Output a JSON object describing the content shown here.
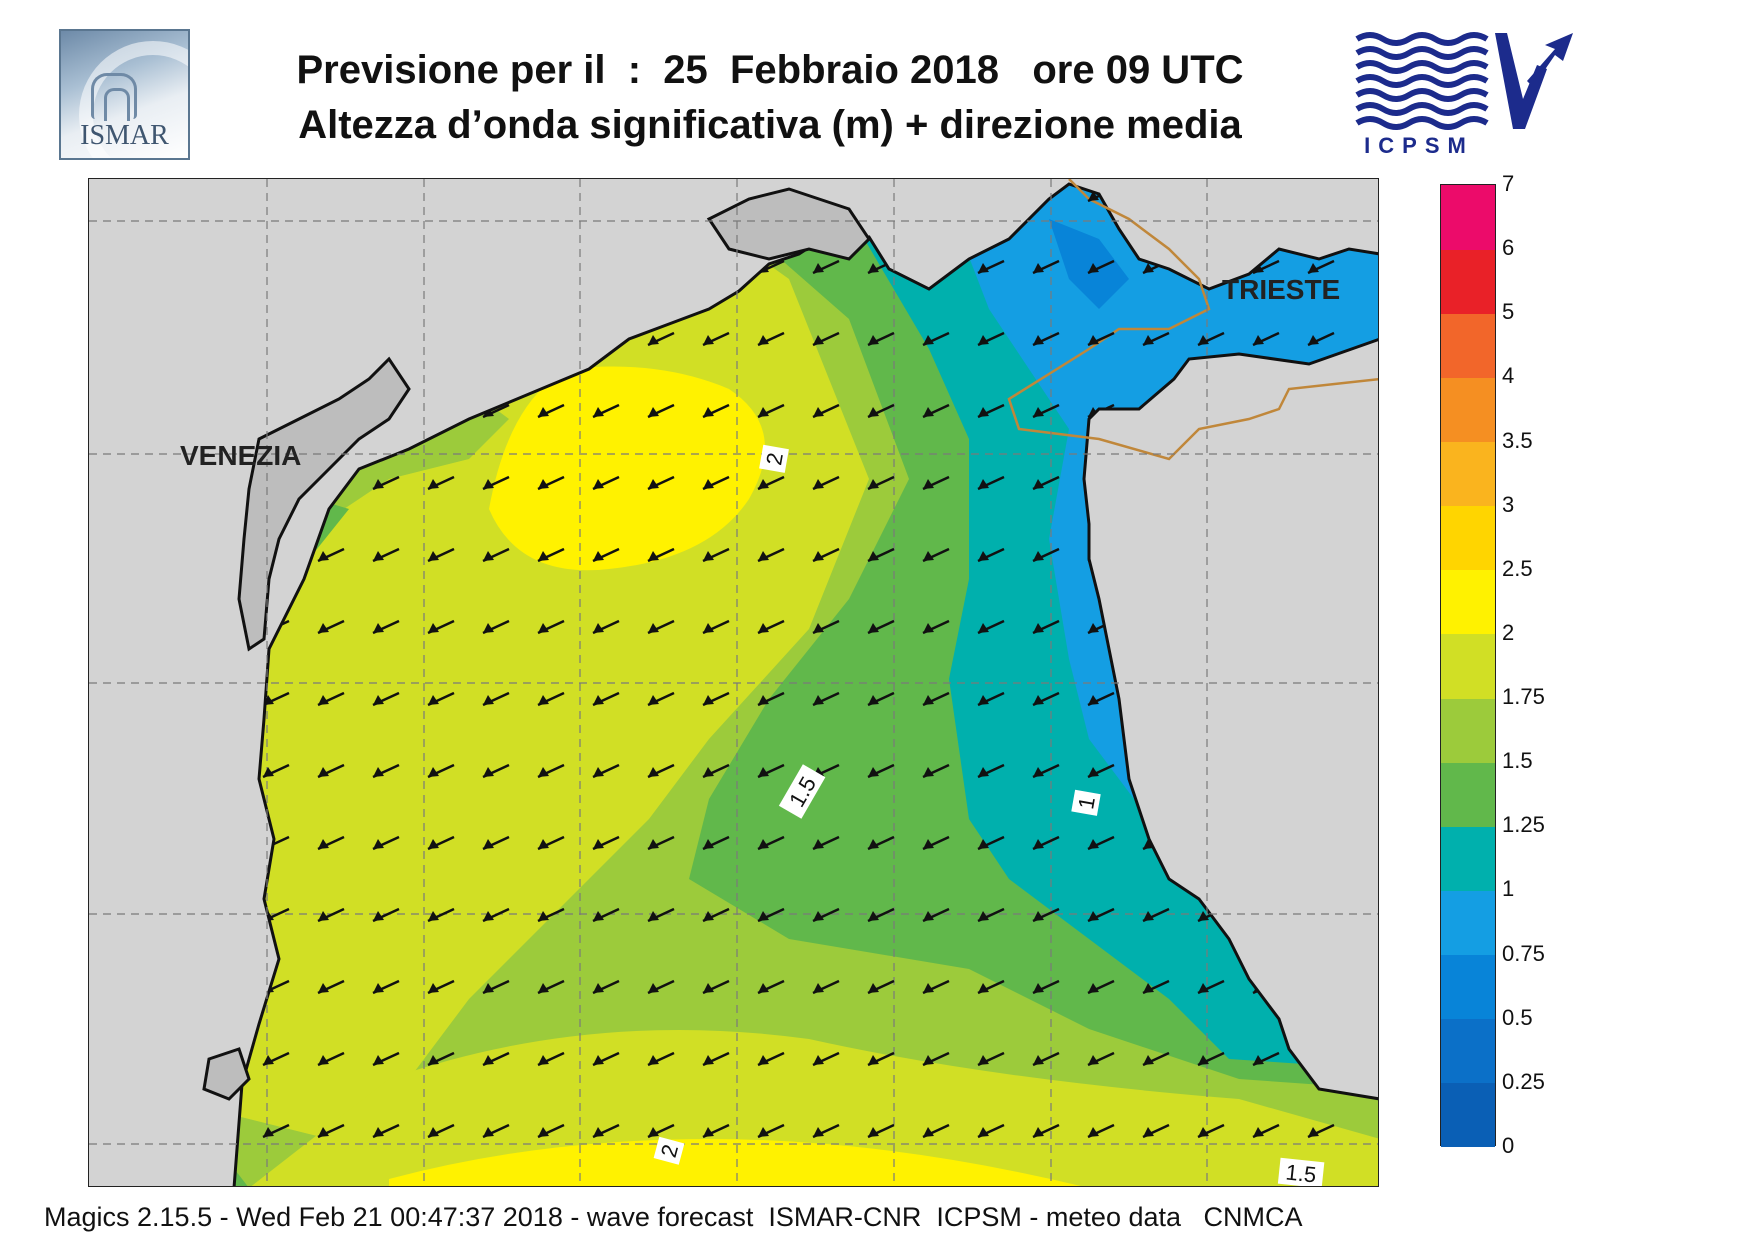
{
  "header": {
    "title_line1": "Previsione per il  :  25  Febbraio 2018   ore 09 UTC",
    "title_line2": "Altezza d’onda significativa (m) + direzione media"
  },
  "logos": {
    "left": {
      "text": "ISMAR",
      "icon": "ismar-logo-icon"
    },
    "right": {
      "text": "ICPSM",
      "icon": "icpsm-logo-icon"
    }
  },
  "map": {
    "cities": [
      "VENEZIA",
      "TRIESTE"
    ],
    "contour_labels": [
      "2",
      "1.5",
      "1",
      "2",
      "1.5"
    ],
    "arrow_direction": "south-west",
    "colors": {
      "land": "#d3d3d3",
      "coast": "#111111",
      "border": "#c0873a",
      "grid": "#7a7a7a",
      "arrow": "#111111"
    }
  },
  "legend": {
    "levels": [
      "0",
      "0.25",
      "0.5",
      "0.75",
      "1",
      "1.25",
      "1.5",
      "1.75",
      "2",
      "2.5",
      "3",
      "3.5",
      "4",
      "5",
      "6",
      "7"
    ],
    "colors": [
      "#0a5fb5",
      "#0b70c8",
      "#0884d8",
      "#149ee3",
      "#00b0ad",
      "#61b84b",
      "#9ccb3b",
      "#d1df25",
      "#fff200",
      "#ffd500",
      "#fab41e",
      "#f58f22",
      "#f2662a",
      "#e92128",
      "#ec0b6a"
    ]
  },
  "footer": {
    "text": "Magics 2.15.5 - Wed Feb 21 00:47:37 2018 - wave forecast  ISMAR-CNR  ICPSM - meteo data   CNMCA"
  }
}
